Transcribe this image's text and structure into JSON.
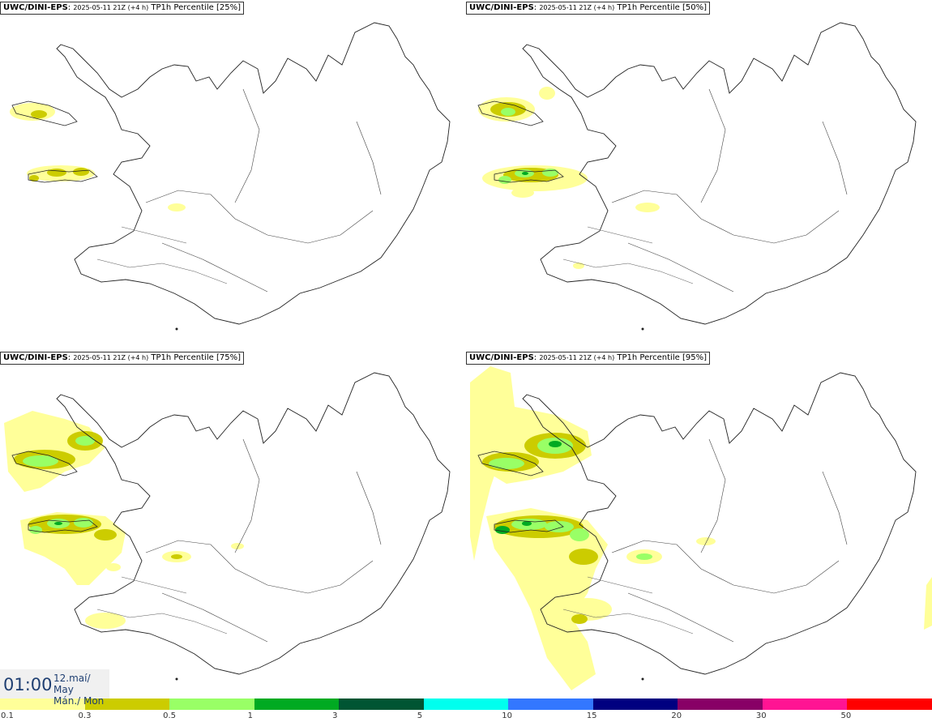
{
  "panels": [
    {
      "source": "UWC/DINI-EPS",
      "run": "2025-05-11 21Z (+4 h)",
      "field": "TP1h Percentile [25%]"
    },
    {
      "source": "UWC/DINI-EPS",
      "run": "2025-05-11 21Z (+4 h)",
      "field": "TP1h Percentile [50%]"
    },
    {
      "source": "UWC/DINI-EPS",
      "run": "2025-05-11 21Z (+4 h)",
      "field": "TP1h Percentile [75%]"
    },
    {
      "source": "UWC/DINI-EPS",
      "run": "2025-05-11 21Z (+4 h)",
      "field": "TP1h Percentile [95%]"
    }
  ],
  "valid_time": {
    "clock": "01:00",
    "date_line": "12.maí/ May",
    "day_line": "Mán./ Mon"
  },
  "legend": {
    "ticks": [
      "0.1",
      "0.3",
      "0.5",
      "1",
      "3",
      "5",
      "10",
      "15",
      "20",
      "30",
      "50"
    ],
    "colors": [
      "#ffff99",
      "#cccc00",
      "#99ff66",
      "#00aa22",
      "#005533",
      "#00ffee",
      "#3377ff",
      "#000080",
      "#880066",
      "#ff1493",
      "#ff0000"
    ]
  },
  "colors": {
    "light": "#ffff99",
    "olive": "#cccc00",
    "lgreen": "#99ff66",
    "green": "#00aa22",
    "coast": "#222222"
  }
}
